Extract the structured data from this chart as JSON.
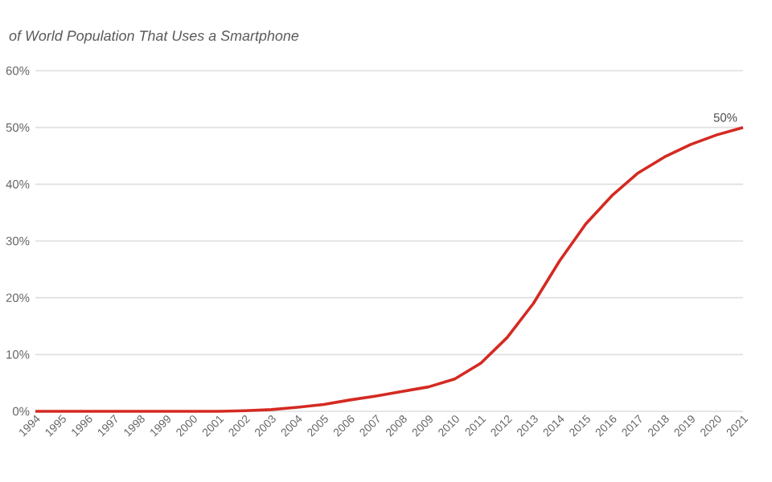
{
  "chart_data": {
    "type": "line",
    "title": "of World Population That Uses a Smartphone",
    "x": [
      1994,
      1995,
      1996,
      1997,
      1998,
      1999,
      2000,
      2001,
      2002,
      2003,
      2004,
      2005,
      2006,
      2007,
      2008,
      2009,
      2010,
      2011,
      2012,
      2013,
      2014,
      2015,
      2016,
      2017,
      2018,
      2019,
      2020,
      2021
    ],
    "series": [
      {
        "color": "#d42a22",
        "values": [
          0,
          0,
          0,
          0,
          0,
          0,
          0,
          0,
          0.1,
          0.3,
          0.7,
          1.2,
          2.0,
          2.7,
          3.5,
          4.3,
          5.7,
          8.5,
          13,
          19,
          26.5,
          33,
          38,
          42,
          44.8,
          47,
          48.7,
          50
        ],
        "value_labels": [
          null,
          null,
          null,
          null,
          null,
          null,
          null,
          null,
          null,
          null,
          null,
          null,
          null,
          null,
          null,
          null,
          null,
          null,
          null,
          null,
          null,
          null,
          null,
          null,
          null,
          null,
          null,
          "50%"
        ]
      }
    ],
    "xlim": [
      1994,
      2021
    ],
    "xticks": [
      1994,
      1995,
      1996,
      1997,
      1998,
      1999,
      2000,
      2001,
      2002,
      2003,
      2004,
      2005,
      2006,
      2007,
      2008,
      2009,
      2010,
      2011,
      2012,
      2013,
      2014,
      2015,
      2016,
      2017,
      2018,
      2019,
      2020,
      2021
    ],
    "ylim": [
      0,
      60
    ],
    "yticks": [
      {
        "value": 0,
        "label": "0%"
      },
      {
        "value": 10,
        "label": "10%"
      },
      {
        "value": 20,
        "label": "20%"
      },
      {
        "value": 30,
        "label": "30%"
      },
      {
        "value": 40,
        "label": "40%"
      },
      {
        "value": 50,
        "label": "50%"
      },
      {
        "value": 60,
        "label": "60%"
      }
    ],
    "grid": "y",
    "marker": "none",
    "line_style": "solid"
  }
}
